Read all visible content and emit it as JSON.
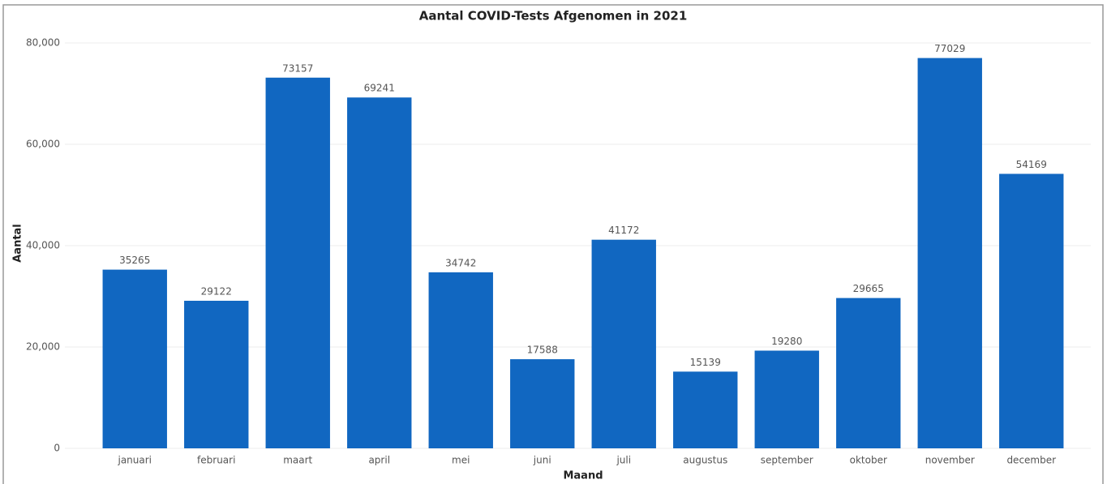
{
  "chart_data": {
    "type": "bar",
    "title": "Aantal COVID-Tests Afgenomen in 2021",
    "x_label": "Maand",
    "y_label": "Aantal",
    "categories": [
      "januari",
      "februari",
      "maart",
      "april",
      "mei",
      "juni",
      "juli",
      "augustus",
      "september",
      "oktober",
      "november",
      "december"
    ],
    "values": [
      35265,
      29122,
      73157,
      69241,
      34742,
      17588,
      41172,
      15139,
      19280,
      29665,
      77029,
      54169
    ],
    "color": "#1167c1",
    "ylim": [
      0,
      80000
    ],
    "yticks": [
      0,
      {
        "value": 20000,
        "label": "20,000"
      },
      {
        "value": 40000,
        "label": "40,000"
      },
      {
        "value": 60000,
        "label": "60,000"
      },
      {
        "value": 80000,
        "label": "80,000"
      }
    ],
    "grid": true
  }
}
